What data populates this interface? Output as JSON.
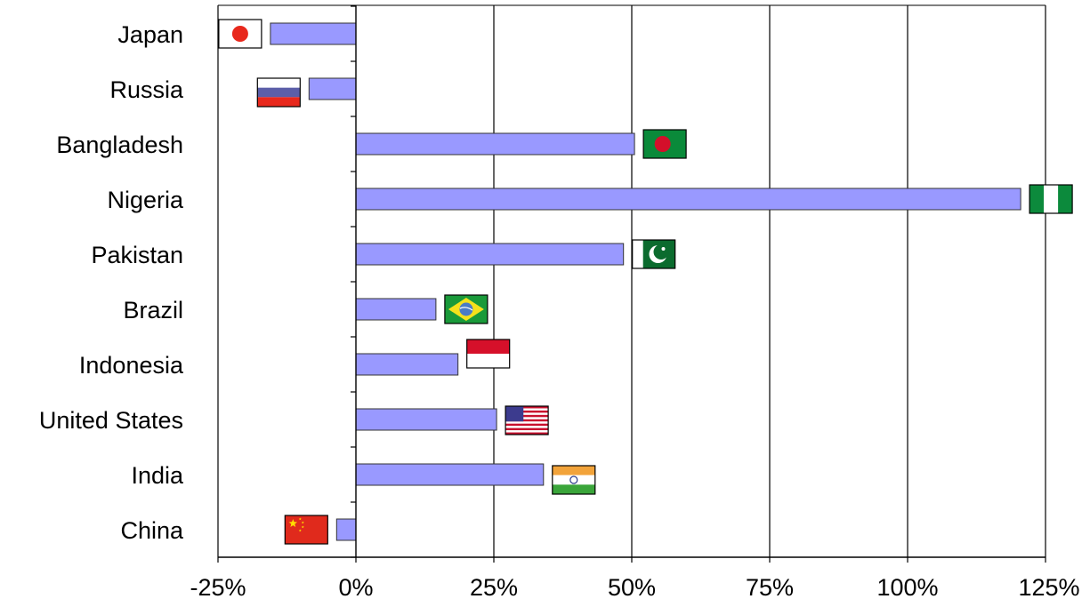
{
  "chart_data": {
    "type": "bar",
    "orientation": "horizontal",
    "categories": [
      "Japan",
      "Russia",
      "Bangladesh",
      "Nigeria",
      "Pakistan",
      "Brazil",
      "Indonesia",
      "United States",
      "India",
      "China"
    ],
    "values": [
      -15.5,
      -8.5,
      50.5,
      120.5,
      48.5,
      14.5,
      18.5,
      25.5,
      34,
      -3.5
    ],
    "flags": [
      "japan",
      "russia",
      "bangladesh",
      "nigeria",
      "pakistan",
      "brazil",
      "indonesia",
      "united-states",
      "india",
      "china"
    ],
    "xlim": [
      -25,
      125
    ],
    "xticks": [
      -25,
      0,
      25,
      50,
      75,
      100,
      125
    ],
    "xtick_labels": [
      "-25%",
      "0%",
      "25%",
      "50%",
      "75%",
      "100%",
      "125%"
    ],
    "grid": "vertical",
    "bar_color": "#9999ff",
    "bar_edge_color": "#333333"
  }
}
